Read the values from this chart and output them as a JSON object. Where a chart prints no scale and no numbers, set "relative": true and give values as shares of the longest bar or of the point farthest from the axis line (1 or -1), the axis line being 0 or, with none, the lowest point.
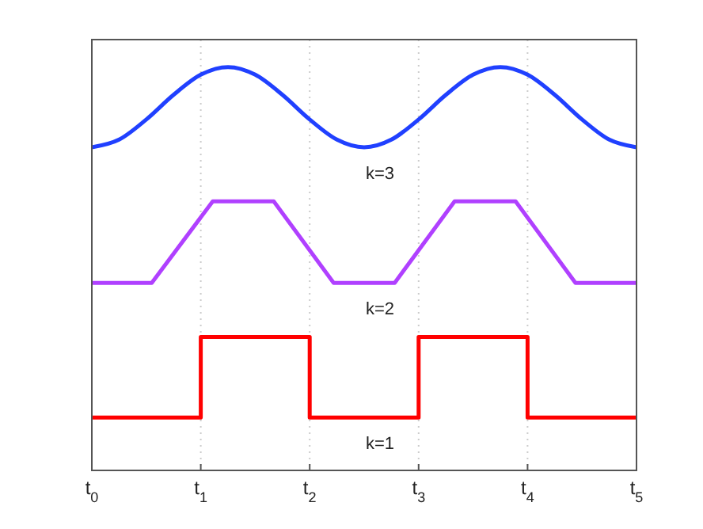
{
  "chart_data": {
    "type": "line",
    "relative": true,
    "xlim": [
      0,
      5
    ],
    "xticks": [
      {
        "value": 0,
        "label": "t$_{0}$"
      },
      {
        "value": 1,
        "label": "t$_{1}$"
      },
      {
        "value": 2,
        "label": "t$_{2}$"
      },
      {
        "value": 3,
        "label": "t$_{3}$"
      },
      {
        "value": 4,
        "label": "t$_{4}$"
      },
      {
        "value": 5,
        "label": "t$_{5}$"
      }
    ],
    "grid": "x",
    "line_style": "solid",
    "marker": "none",
    "series": [
      {
        "color": "#2040ff",
        "x": [
          0,
          0.25,
          0.5,
          0.75,
          1,
          1.25,
          1.5,
          1.75,
          2,
          2.25,
          2.5,
          2.75,
          3,
          3.25,
          3.5,
          3.75,
          4,
          4.25,
          4.5,
          4.75,
          5
        ],
        "values": [
          0.801,
          0.82,
          0.87,
          0.931,
          0.981,
          1.0,
          0.981,
          0.931,
          0.87,
          0.82,
          0.801,
          0.82,
          0.87,
          0.931,
          0.981,
          1.0,
          0.981,
          0.931,
          0.87,
          0.82,
          0.801
        ]
      },
      {
        "color": "#b040ff",
        "x": [
          0,
          0.55,
          1.11,
          1.67,
          2.22,
          2.78,
          3.33,
          3.89,
          4.44,
          5
        ],
        "values": [
          0.465,
          0.465,
          0.667,
          0.667,
          0.465,
          0.465,
          0.667,
          0.667,
          0.465,
          0.465
        ]
      },
      {
        "type": "step",
        "color": "#ff0000",
        "x": [
          0,
          1,
          2,
          3,
          4,
          5
        ],
        "values": [
          0.131,
          0.331,
          0.131,
          0.331,
          0.131,
          0.131
        ]
      }
    ],
    "annotations": [
      "k=3",
      "k=2",
      "k=1"
    ]
  }
}
